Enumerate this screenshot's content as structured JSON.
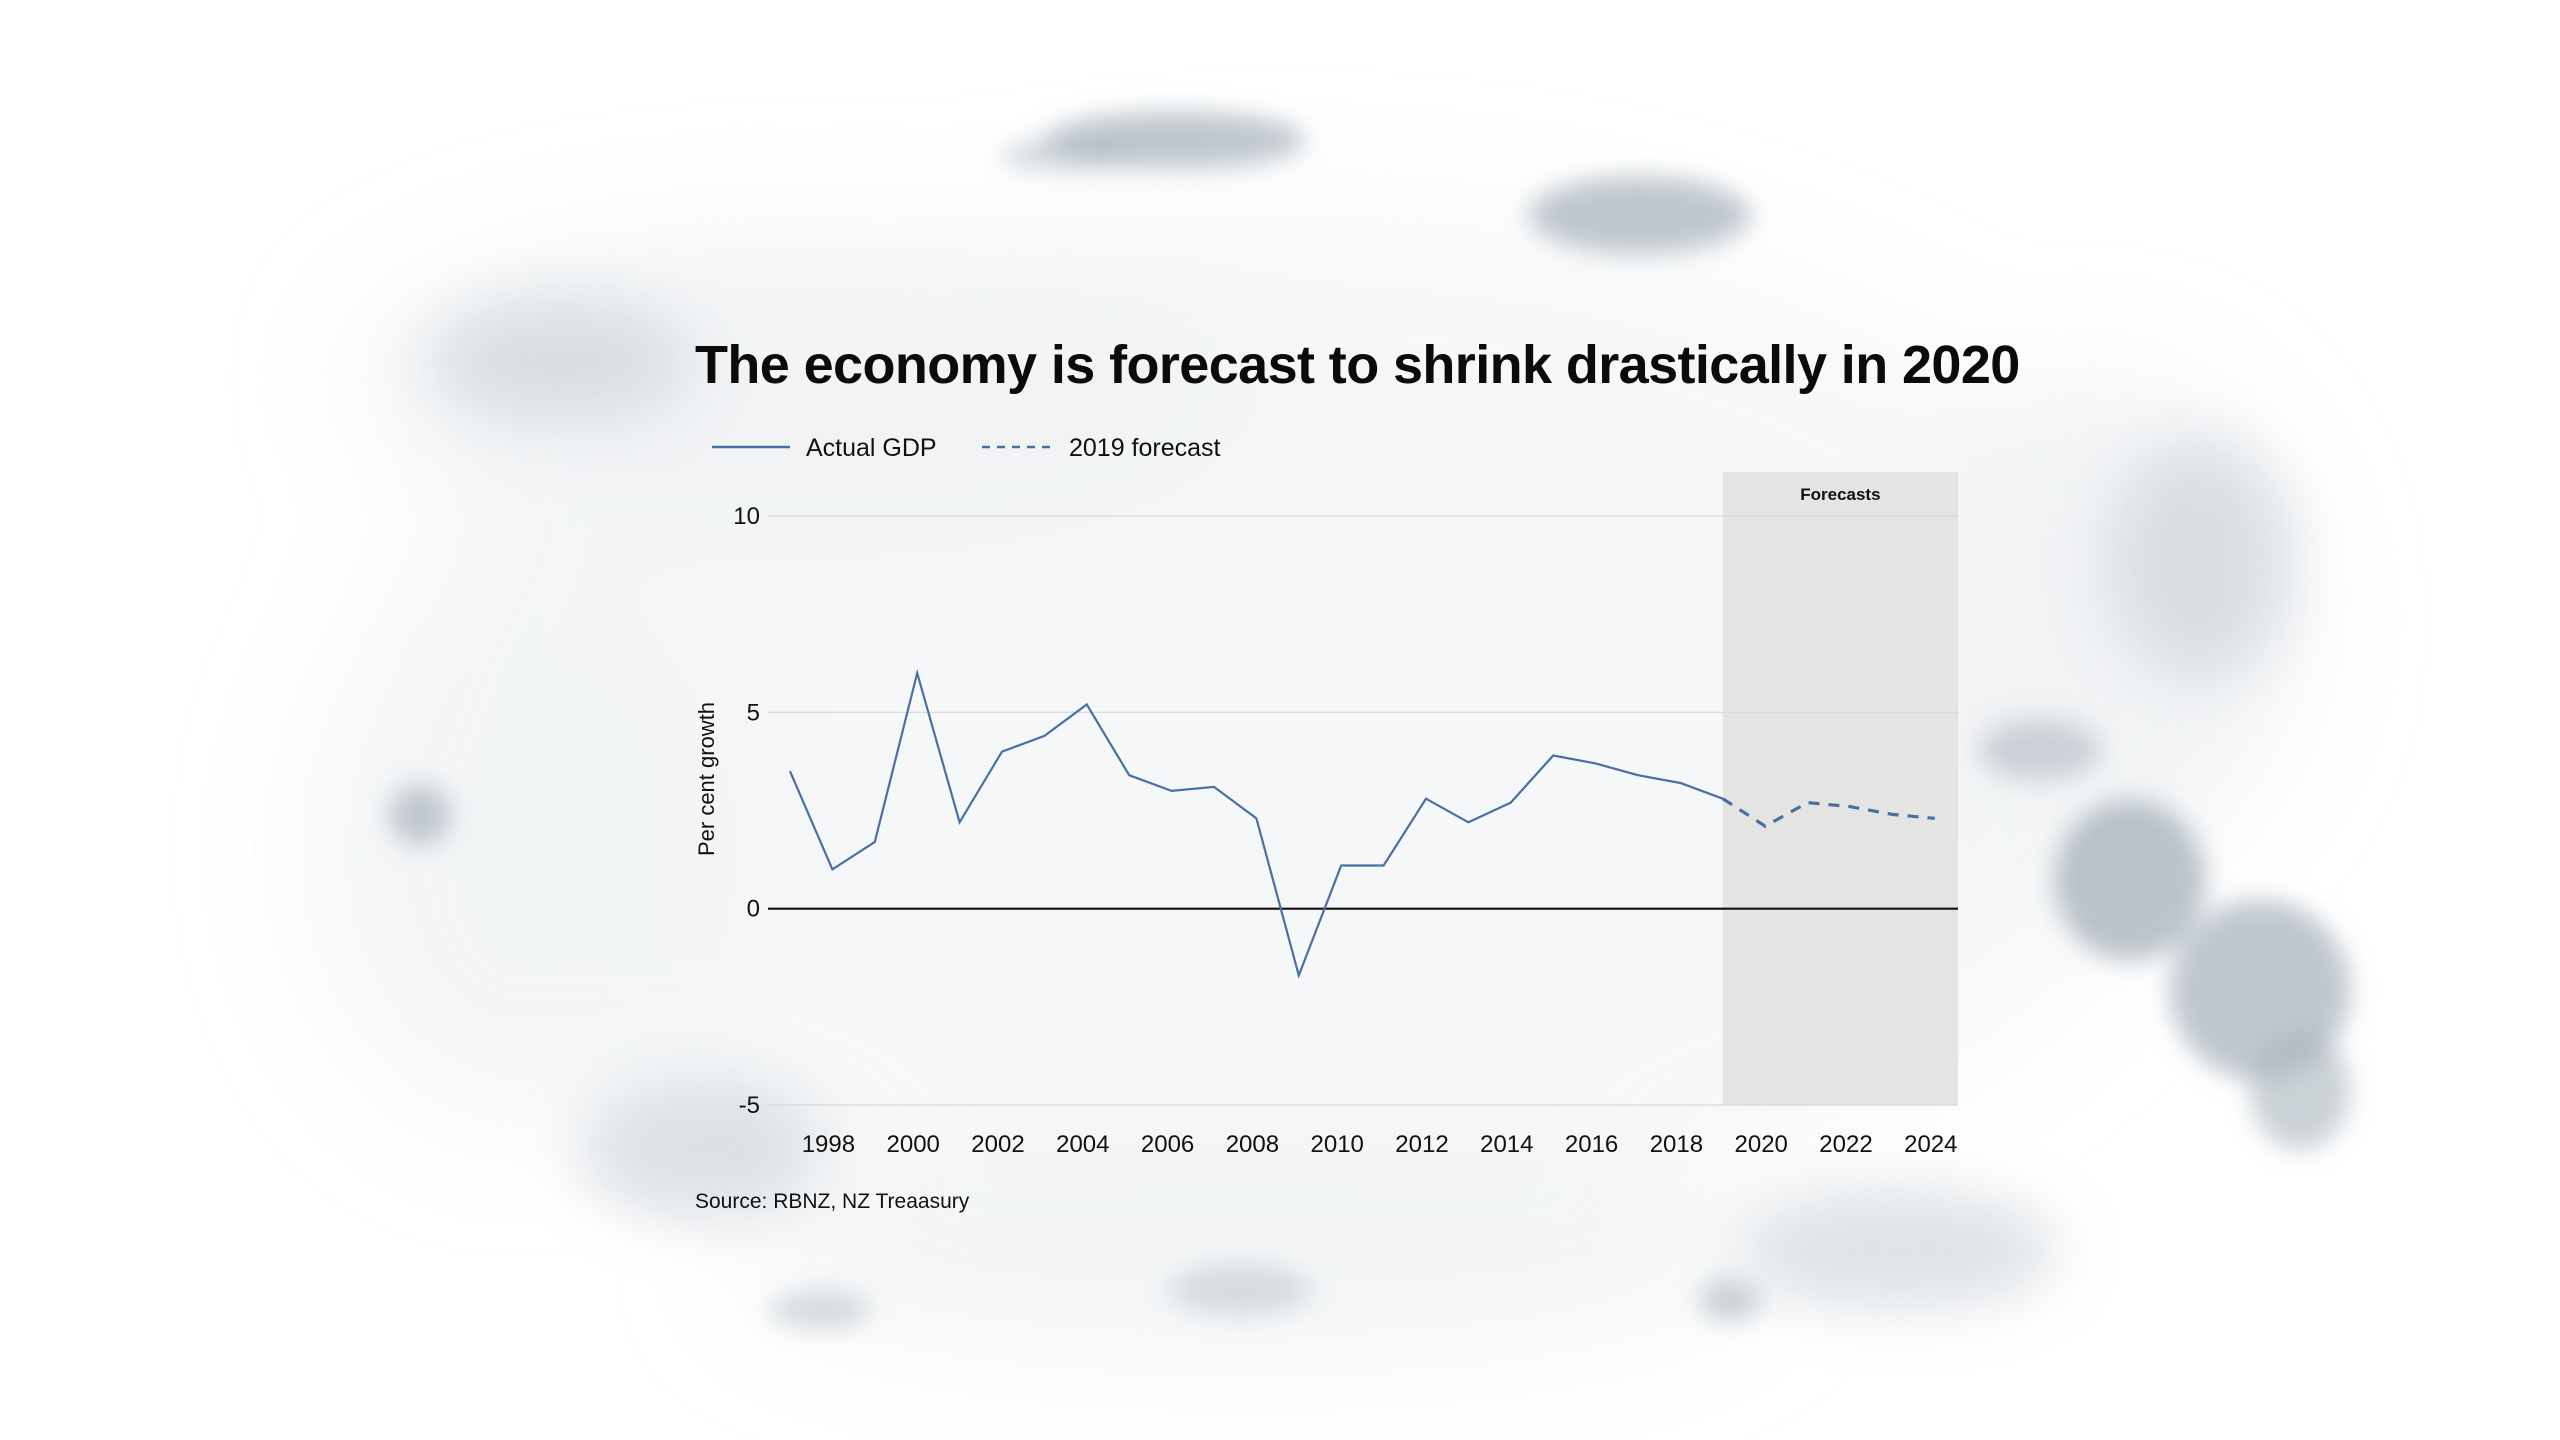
{
  "chart_data": {
    "type": "line",
    "title": "The economy is forecast to shrink drastically in 2020",
    "xlabel": "",
    "ylabel": "Per cent growth",
    "ylim": [
      -5,
      10
    ],
    "xlim": [
      1997,
      2024
    ],
    "yticks": [
      10,
      5,
      0,
      -5
    ],
    "xticks": [
      1998,
      2000,
      2002,
      2004,
      2006,
      2008,
      2010,
      2012,
      2014,
      2016,
      2018,
      2020,
      2022,
      2024
    ],
    "grid": true,
    "legend_position": "top-left",
    "series": [
      {
        "name": "Actual GDP",
        "style": "solid",
        "color": "#4a6fa5",
        "x": [
          1997,
          1998,
          1999,
          2000,
          2001,
          2002,
          2003,
          2004,
          2005,
          2006,
          2007,
          2008,
          2009,
          2010,
          2011,
          2012,
          2013,
          2014,
          2015,
          2016,
          2017,
          2018,
          2019
        ],
        "values": [
          3.5,
          1.0,
          1.7,
          6.0,
          2.2,
          4.0,
          4.4,
          5.2,
          3.4,
          3.0,
          3.1,
          2.3,
          -1.7,
          1.1,
          1.1,
          2.8,
          2.2,
          2.7,
          3.9,
          3.7,
          3.4,
          3.2,
          2.8
        ]
      },
      {
        "name": "2019 forecast",
        "style": "dashed",
        "color": "#4a6fa5",
        "x": [
          2019,
          2020,
          2021,
          2022,
          2023,
          2024
        ],
        "values": [
          2.8,
          2.1,
          2.7,
          2.6,
          2.4,
          2.3
        ]
      }
    ],
    "annotations": [
      {
        "label": "Forecasts",
        "type": "shaded-region",
        "x_start": 2019,
        "x_end": 2024.5,
        "color": "#e4e4e2"
      }
    ],
    "source": "Source: RBNZ, NZ Treaasury"
  },
  "colors": {
    "line": "#4a6fa5",
    "zero_line": "#111111",
    "gridline": "#d8d8d8",
    "forecast_band": "#e4e4e2",
    "watercolor": "#a9b4bd"
  }
}
